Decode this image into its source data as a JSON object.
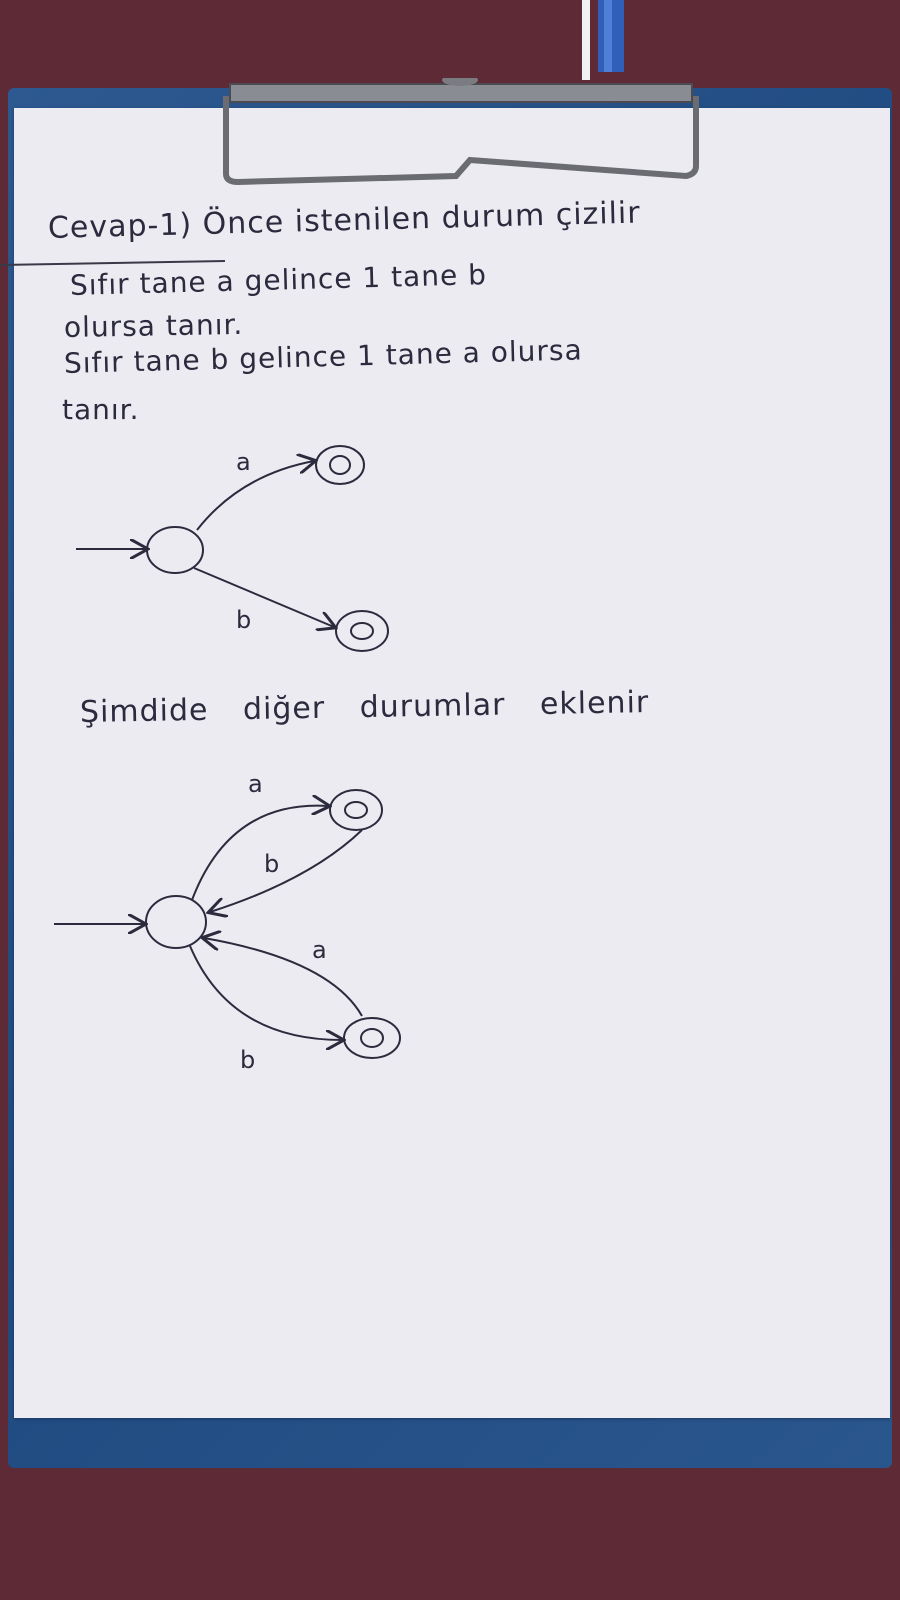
{
  "heading": "Cevap-1) Önce istenilen durum çizilir",
  "lines": [
    "Sıfır tane a gelince 1 tane b",
    "olursa tanır.",
    "Sıfır tane b gelince 1 tane a olursa",
    "tanır."
  ],
  "second_heading": "Şimdide diğer durumlar eklenir",
  "diagram1": {
    "states": [
      "start",
      "accept_a",
      "accept_b"
    ],
    "transitions": [
      {
        "from": "start",
        "to": "accept_a",
        "label": "a"
      },
      {
        "from": "start",
        "to": "accept_b",
        "label": "b"
      }
    ]
  },
  "diagram2": {
    "states": [
      "start",
      "accept_a",
      "accept_b"
    ],
    "transitions": [
      {
        "from": "start",
        "to": "accept_a",
        "label": "a"
      },
      {
        "from": "accept_a",
        "to": "start",
        "label": "b"
      },
      {
        "from": "accept_b",
        "to": "start",
        "label": "a"
      },
      {
        "from": "start",
        "to": "accept_b",
        "label": "b"
      }
    ]
  },
  "colors": {
    "ink": "#2c2b3e",
    "paper": "#ecebf2",
    "clipboard": "#2a568e",
    "background": "#5e2a35"
  }
}
